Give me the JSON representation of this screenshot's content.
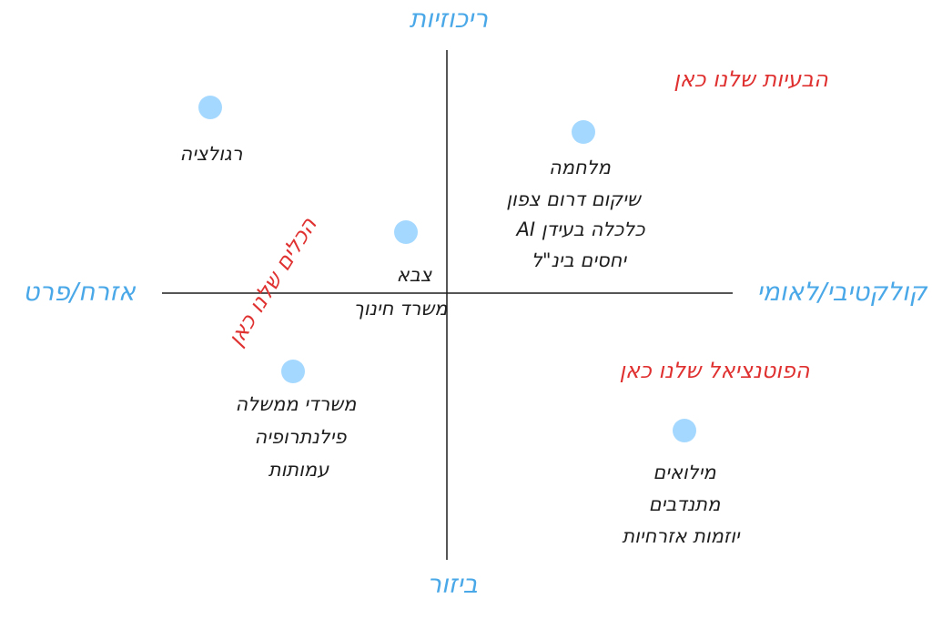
{
  "axes": {
    "top": "ריכוזיות",
    "bottom": "ביזור",
    "left": "אזרח/פרט",
    "right": "קולקטיבי/לאומי"
  },
  "annotations": [
    "הבעיות שלנו כאן",
    "הכלים שלנו כאן",
    "הפוטנציאל שלנו כאן"
  ],
  "nodes": [
    {
      "lines": [
        "רגולציה"
      ]
    },
    {
      "lines": [
        "מלחמה",
        "שיקום דרום צפון",
        "כלכלה בעידן AI",
        "יחסים בינ\"ל"
      ]
    },
    {
      "lines": [
        "צבא",
        "משרד חינוך"
      ]
    },
    {
      "lines": [
        "משרדי ממשלה",
        "פילנתרופיה",
        "עמותות"
      ]
    },
    {
      "lines": [
        "מילואים",
        "מתנדבים",
        "יוזמות אזרחיות"
      ]
    }
  ]
}
